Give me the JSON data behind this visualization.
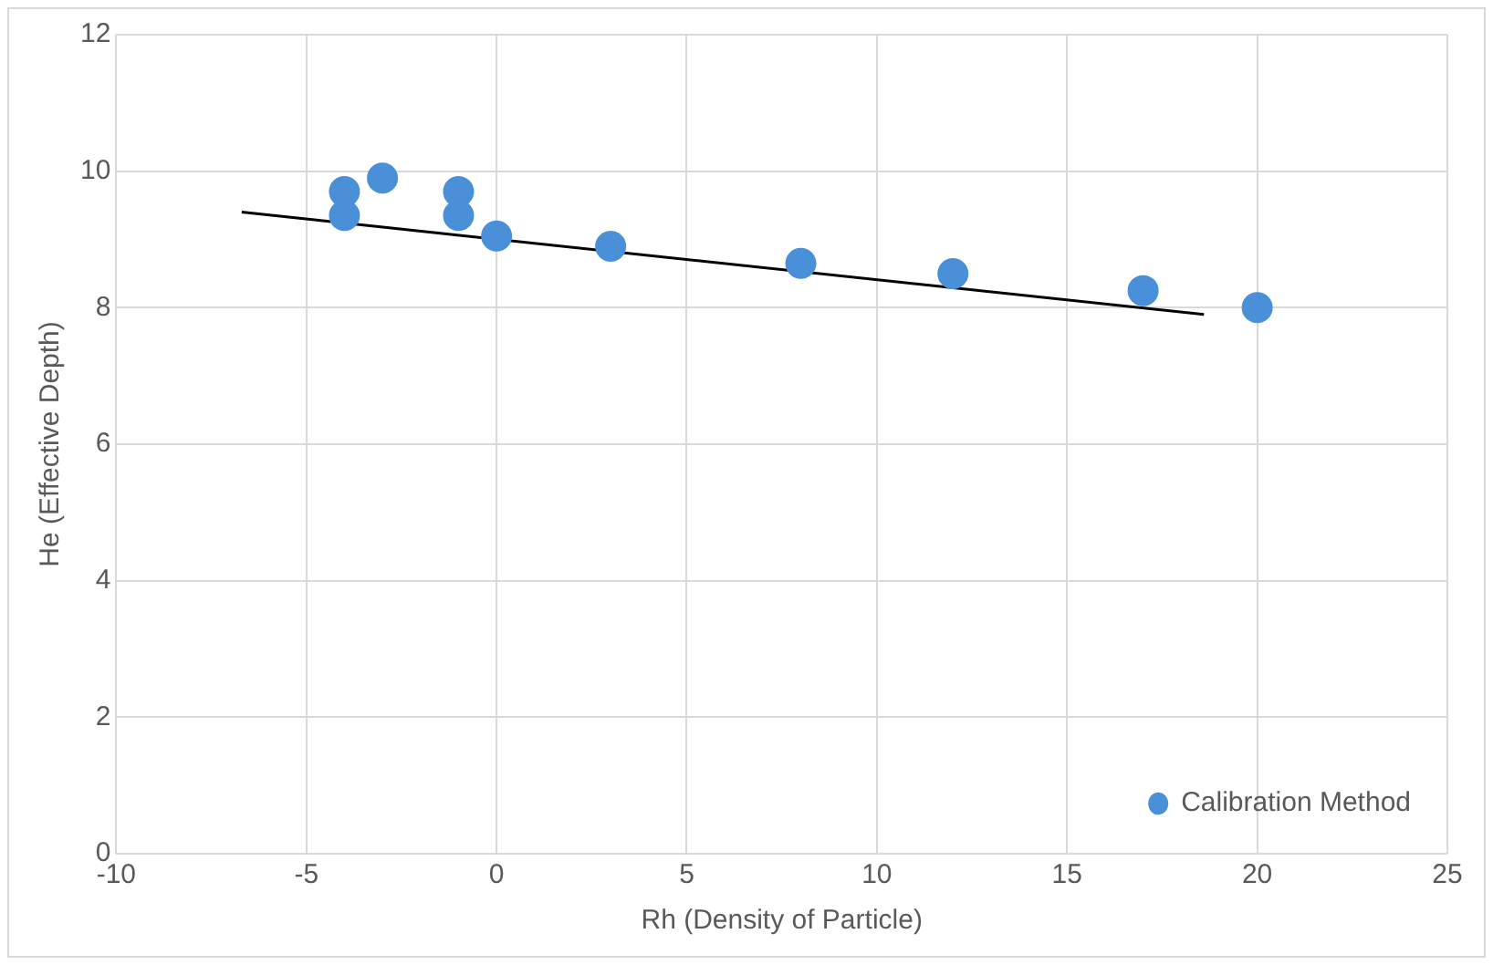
{
  "chart_data": {
    "type": "scatter",
    "xlabel": "Rh (Density of Particle)",
    "ylabel": "He (Effective Depth)",
    "xlim": [
      -10,
      25
    ],
    "xticks": [
      -10,
      -5,
      0,
      5,
      10,
      15,
      20,
      25
    ],
    "ylim": [
      0,
      12
    ],
    "yticks": [
      0,
      2,
      4,
      6,
      8,
      10,
      12
    ],
    "grid": true,
    "legend": "bottom right",
    "marker": "circle",
    "series": [
      {
        "name": "Calibration Method",
        "color": "#4a90d9",
        "x": [
          -4,
          -4,
          -3,
          -1,
          -1,
          0,
          3,
          8,
          12,
          17,
          20
        ],
        "values": [
          9.7,
          9.35,
          9.9,
          9.7,
          9.35,
          9.05,
          8.9,
          8.65,
          8.5,
          8.25,
          8.0
        ]
      },
      {
        "type": "line",
        "color": "#000000",
        "marker": "none",
        "x": [
          -6.7,
          18.6
        ],
        "values": [
          9.4,
          7.9
        ]
      }
    ]
  }
}
